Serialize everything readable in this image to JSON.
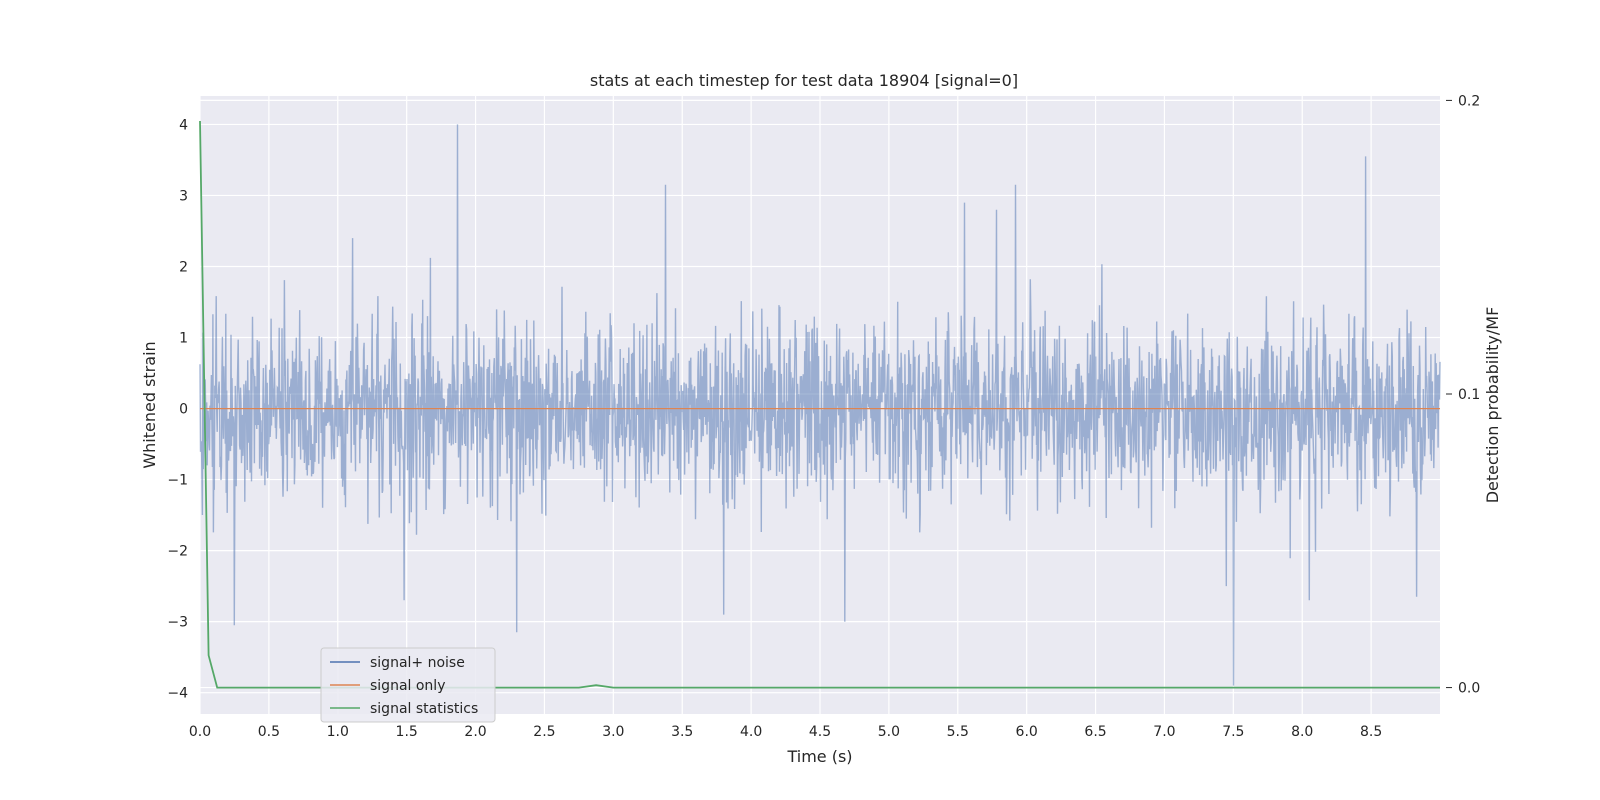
{
  "chart_data": {
    "type": "line",
    "title": "stats at each timestep for test data 18904 [signal=0]",
    "xlabel": "Time (s)",
    "ylabel": "Whitened strain",
    "y2label": "Detection probability/MF",
    "xlim": [
      0.0,
      9.0
    ],
    "ylim": [
      -4.3,
      4.4
    ],
    "y2lim": [
      -0.009,
      0.2015
    ],
    "x_ticks": [
      "0.0",
      "0.5",
      "1.0",
      "1.5",
      "2.0",
      "2.5",
      "3.0",
      "3.5",
      "4.0",
      "4.5",
      "5.0",
      "5.5",
      "6.0",
      "6.5",
      "7.0",
      "7.5",
      "8.0",
      "8.5"
    ],
    "y_ticks": [
      "4",
      "3",
      "2",
      "1",
      "0",
      "−1",
      "−2",
      "−3",
      "−4"
    ],
    "y2_ticks": [
      "0.2",
      "0.1",
      "0.0"
    ],
    "grid": true,
    "background": "#eaeaf2",
    "legend_position": "lower-left",
    "legend": [
      "signal+ noise",
      "signal only",
      "signal statistics"
    ],
    "series": [
      {
        "name": "signal+ noise",
        "axis": "left",
        "color": "#4c72b0",
        "style": "noise",
        "sample_rate_hz": 2048,
        "envelope": 1.5,
        "peaks": [
          {
            "x": 1.87,
            "y": 4.0
          },
          {
            "x": 8.46,
            "y": 3.55
          },
          {
            "x": 3.38,
            "y": 3.15
          },
          {
            "x": 5.92,
            "y": 3.15
          },
          {
            "x": 5.55,
            "y": 2.9
          },
          {
            "x": 5.78,
            "y": 2.8
          },
          {
            "x": 7.5,
            "y": -3.9
          },
          {
            "x": 2.3,
            "y": -3.15
          },
          {
            "x": 0.25,
            "y": -3.05
          },
          {
            "x": 4.68,
            "y": -3.0
          },
          {
            "x": 3.8,
            "y": -2.9
          },
          {
            "x": 7.45,
            "y": -2.5
          },
          {
            "x": 8.05,
            "y": -2.7
          },
          {
            "x": 8.83,
            "y": -2.65
          },
          {
            "x": 1.48,
            "y": -2.7
          }
        ]
      },
      {
        "name": "signal only",
        "axis": "left",
        "color": "#dd8452",
        "x": [
          0.0,
          9.0
        ],
        "y": [
          0.0,
          0.0
        ]
      },
      {
        "name": "signal statistics",
        "axis": "right",
        "color": "#55a868",
        "x": [
          0.0,
          0.0625,
          0.125,
          2.75,
          2.875,
          3.0,
          9.0
        ],
        "y": [
          0.193,
          0.011,
          0.0,
          0.0,
          0.0008,
          0.0,
          0.0
        ]
      }
    ]
  }
}
